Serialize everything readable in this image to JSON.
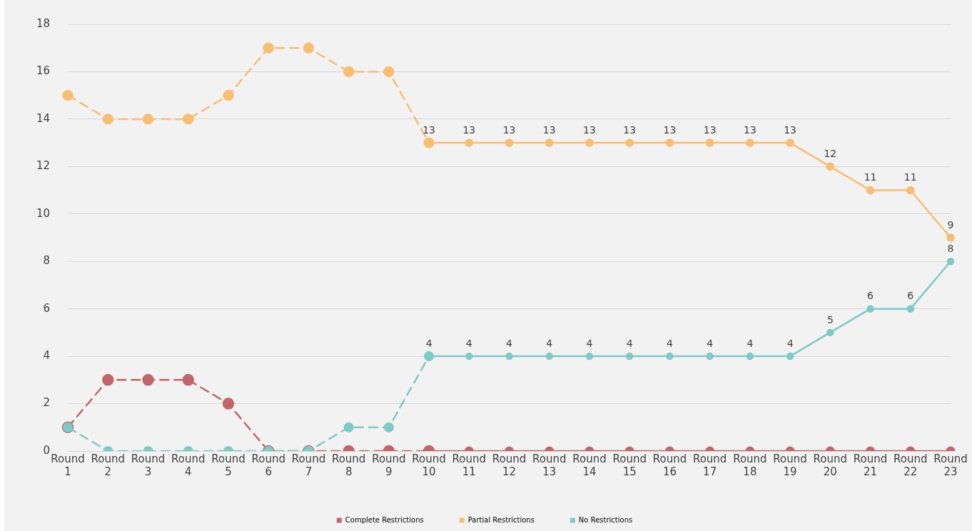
{
  "chart_data": {
    "type": "line",
    "categories": [
      "Round 1",
      "Round 2",
      "Round 3",
      "Round 4",
      "Round 5",
      "Round 6",
      "Round 7",
      "Round 8",
      "Round 9",
      "Round 10",
      "Round 11",
      "Round 12",
      "Round 13",
      "Round 14",
      "Round 15",
      "Round 16",
      "Round 17",
      "Round 18",
      "Round 19",
      "Round 20",
      "Round 21",
      "Round 22",
      "Round 23"
    ],
    "series": [
      {
        "color": "#c0666a",
        "line_style": "dashed",
        "values": [
          1,
          3,
          3,
          3,
          2,
          0,
          0,
          0,
          0,
          0,
          null,
          null,
          null,
          null,
          null,
          null,
          null,
          null,
          null,
          null,
          null,
          null,
          null
        ]
      },
      {
        "color": "#f9bd73",
        "line_style": "dashed",
        "values": [
          15,
          14,
          14,
          14,
          15,
          17,
          17,
          16,
          16,
          13,
          null,
          null,
          null,
          null,
          null,
          null,
          null,
          null,
          null,
          null,
          null,
          null,
          null
        ]
      },
      {
        "color": "#7ecbc6",
        "line_style": "dashed",
        "values": [
          1,
          0,
          0,
          0,
          0,
          0,
          0,
          1,
          1,
          4,
          null,
          null,
          null,
          null,
          null,
          null,
          null,
          null,
          null,
          null,
          null,
          null,
          null
        ]
      },
      {
        "name": "Complete Restrictions",
        "color": "#c0666a",
        "line_style": "solid",
        "values": [
          null,
          null,
          null,
          null,
          null,
          null,
          null,
          null,
          null,
          0,
          0,
          0,
          0,
          0,
          0,
          0,
          0,
          0,
          0,
          0,
          0,
          0,
          0
        ]
      },
      {
        "name": "Partial Restrictions",
        "color": "#f9bd73",
        "line_style": "solid",
        "values": [
          null,
          null,
          null,
          null,
          null,
          null,
          null,
          null,
          null,
          13,
          13,
          13,
          13,
          13,
          13,
          13,
          13,
          13,
          13,
          12,
          11,
          11,
          9
        ],
        "value_labels": [
          null,
          null,
          null,
          null,
          null,
          null,
          null,
          null,
          null,
          "13",
          "13",
          "13",
          "13",
          "13",
          "13",
          "13",
          "13",
          "13",
          "13",
          "12",
          "11",
          "11",
          "9"
        ]
      },
      {
        "name": "No Restrictions",
        "color": "#7ecbc6",
        "line_style": "solid",
        "values": [
          null,
          null,
          null,
          null,
          null,
          null,
          null,
          null,
          null,
          4,
          4,
          4,
          4,
          4,
          4,
          4,
          4,
          4,
          4,
          5,
          6,
          6,
          8
        ],
        "value_labels": [
          null,
          null,
          null,
          null,
          null,
          null,
          null,
          null,
          null,
          "4",
          "4",
          "4",
          "4",
          "4",
          "4",
          "4",
          "4",
          "4",
          "4",
          "5",
          "6",
          "6",
          "8"
        ]
      }
    ],
    "ylim": [
      0,
      18
    ],
    "yticks": [
      0,
      2,
      4,
      6,
      8,
      10,
      12,
      14,
      16,
      18
    ],
    "grid": "y",
    "legend": "bottom",
    "marker": "circle"
  }
}
